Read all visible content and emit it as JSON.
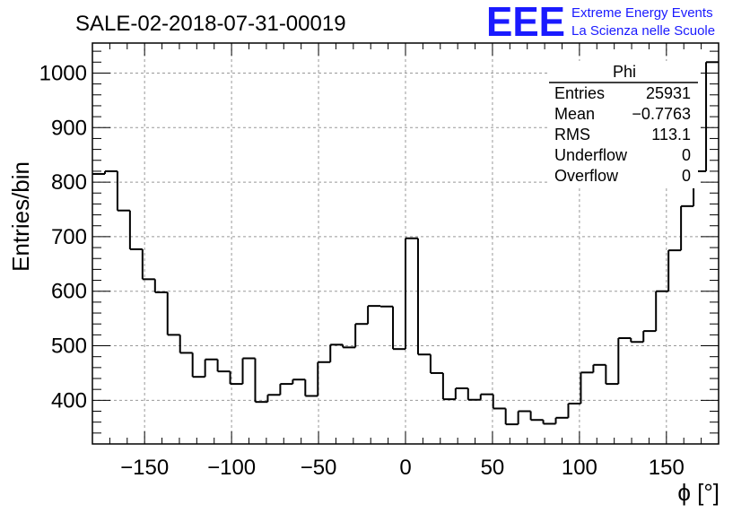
{
  "title": "SALE-02-2018-07-31-00019",
  "logo": {
    "mark": "EEE",
    "line1": "Extreme Energy Events",
    "line2": "La Scienza nelle Scuole",
    "color": "#1a1aff"
  },
  "stats": {
    "name": "Phi",
    "rows": [
      {
        "label": "Entries",
        "value": "25931"
      },
      {
        "label": "Mean",
        "value": "−0.7763"
      },
      {
        "label": "RMS",
        "value": "113.1"
      },
      {
        "label": "Underflow",
        "value": "0"
      },
      {
        "label": "Overflow",
        "value": "0"
      }
    ]
  },
  "chart_data": {
    "type": "histogram",
    "title": "SALE-02-2018-07-31-00019",
    "xlabel": "ϕ [°]",
    "ylabel": "Entries/bin",
    "xlim": [
      -180,
      180
    ],
    "ylim": [
      320,
      1055
    ],
    "bin_width": 7.2,
    "bin_start": -180,
    "values": [
      815,
      820,
      748,
      677,
      622,
      598,
      520,
      487,
      443,
      475,
      453,
      430,
      477,
      397,
      410,
      430,
      438,
      408,
      470,
      502,
      497,
      540,
      573,
      572,
      494,
      697,
      484,
      450,
      402,
      422,
      401,
      411,
      385,
      356,
      380,
      364,
      357,
      368,
      394,
      451,
      465,
      430,
      514,
      507,
      527,
      600,
      675,
      756,
      820,
      1020
    ],
    "xticks": [
      -150,
      -100,
      -50,
      0,
      50,
      100,
      150
    ],
    "yticks": [
      400,
      500,
      600,
      700,
      800,
      900,
      1000
    ],
    "grid": true,
    "line_color": "#000000",
    "grid_color": "#999999"
  }
}
